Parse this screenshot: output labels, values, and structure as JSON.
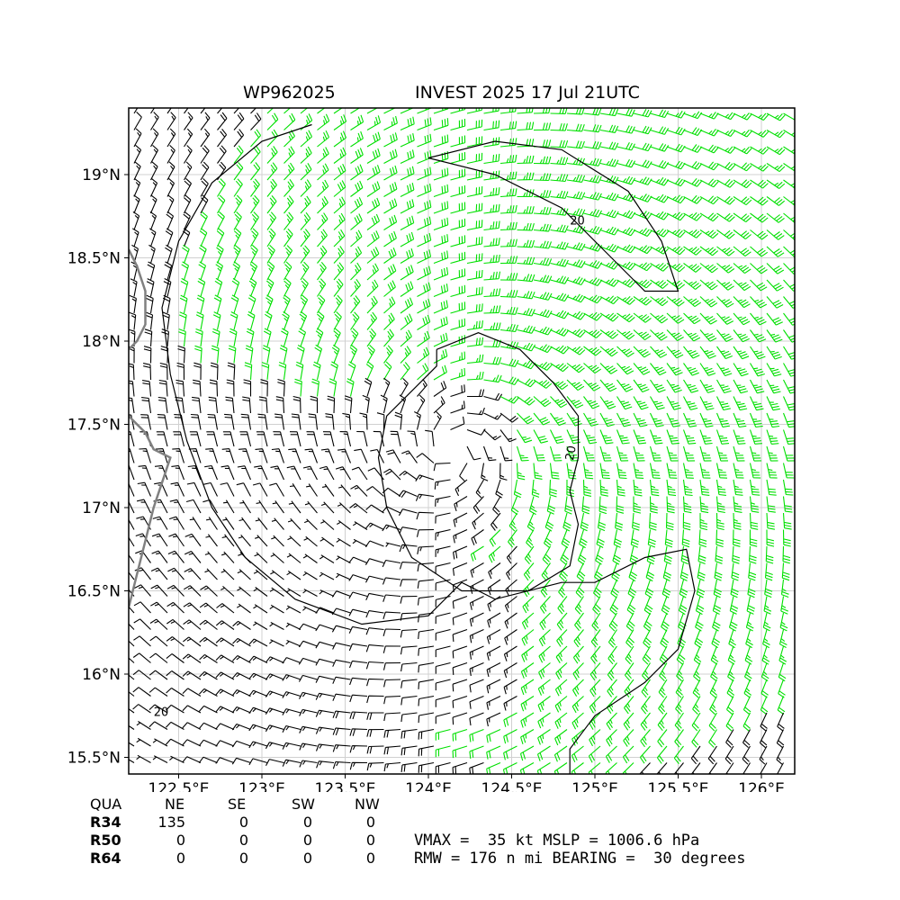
{
  "title": {
    "storm_id": "WP962025",
    "description": "INVEST 2025 17 Jul 21UTC"
  },
  "map": {
    "lon_range": [
      122.2,
      126.2
    ],
    "lat_range": [
      15.4,
      19.4
    ],
    "x_ticks": [
      "122.5°E",
      "123°E",
      "123.5°E",
      "124°E",
      "124.5°E",
      "125°E",
      "125.5°E",
      "126°E"
    ],
    "x_tick_values": [
      122.5,
      123.0,
      123.5,
      124.0,
      124.5,
      125.0,
      125.5,
      126.0
    ],
    "y_ticks": [
      "19°N",
      "18.5°N",
      "18°N",
      "17.5°N",
      "17°N",
      "16.5°N",
      "16°N",
      "15.5°N"
    ],
    "y_tick_values": [
      19.0,
      18.5,
      18.0,
      17.5,
      17.0,
      16.5,
      16.0,
      15.5
    ],
    "grid": true,
    "storm_center": [
      124.15,
      17.35
    ],
    "contour_label": "20",
    "colors": {
      "barb_high": "#00e000",
      "barb_low": "#000000",
      "coast": "#808080",
      "grid": "#d0d0d0"
    }
  },
  "table": {
    "header": [
      "QUA",
      "NE",
      "SE",
      "SW",
      "NW"
    ],
    "rows": [
      {
        "label": "R34",
        "values": [
          "135",
          "0",
          "0",
          "0"
        ]
      },
      {
        "label": "R50",
        "values": [
          "0",
          "0",
          "0",
          "0"
        ]
      },
      {
        "label": "R64",
        "values": [
          "0",
          "0",
          "0",
          "0"
        ]
      }
    ]
  },
  "summary": {
    "line1": "VMAX =  35 kt MSLP = 1006.6 hPa",
    "line2": "RMW = 176 n mi BEARING =  30 degrees"
  }
}
